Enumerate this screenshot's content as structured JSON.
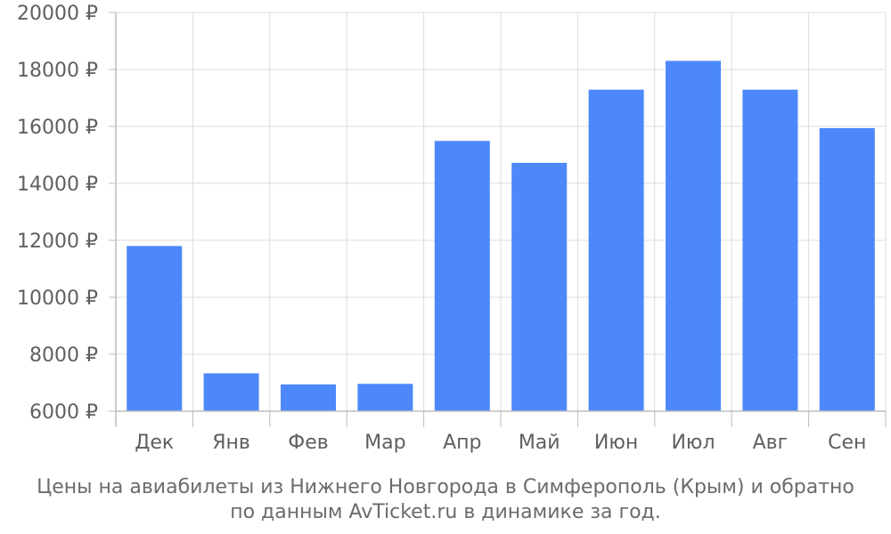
{
  "chart_data": {
    "type": "bar",
    "categories": [
      "Дек",
      "Янв",
      "Фев",
      "Мар",
      "Апр",
      "Май",
      "Июн",
      "Июл",
      "Авг",
      "Сен"
    ],
    "values": [
      11800,
      7330,
      6940,
      6960,
      15490,
      14720,
      17290,
      18300,
      17290,
      15940
    ],
    "ylim": [
      6000,
      20000
    ],
    "yticks": [
      6000,
      8000,
      10000,
      12000,
      14000,
      16000,
      18000,
      20000
    ],
    "ytick_suffix": " ₽",
    "bar_color": "#4d88fb",
    "grid": true,
    "caption_line1": "Цены на авиабилеты из Нижнего Новгорода в Симферополь (Крым) и обратно",
    "caption_line2": "по данным AvTicket.ru в динамике за год."
  }
}
